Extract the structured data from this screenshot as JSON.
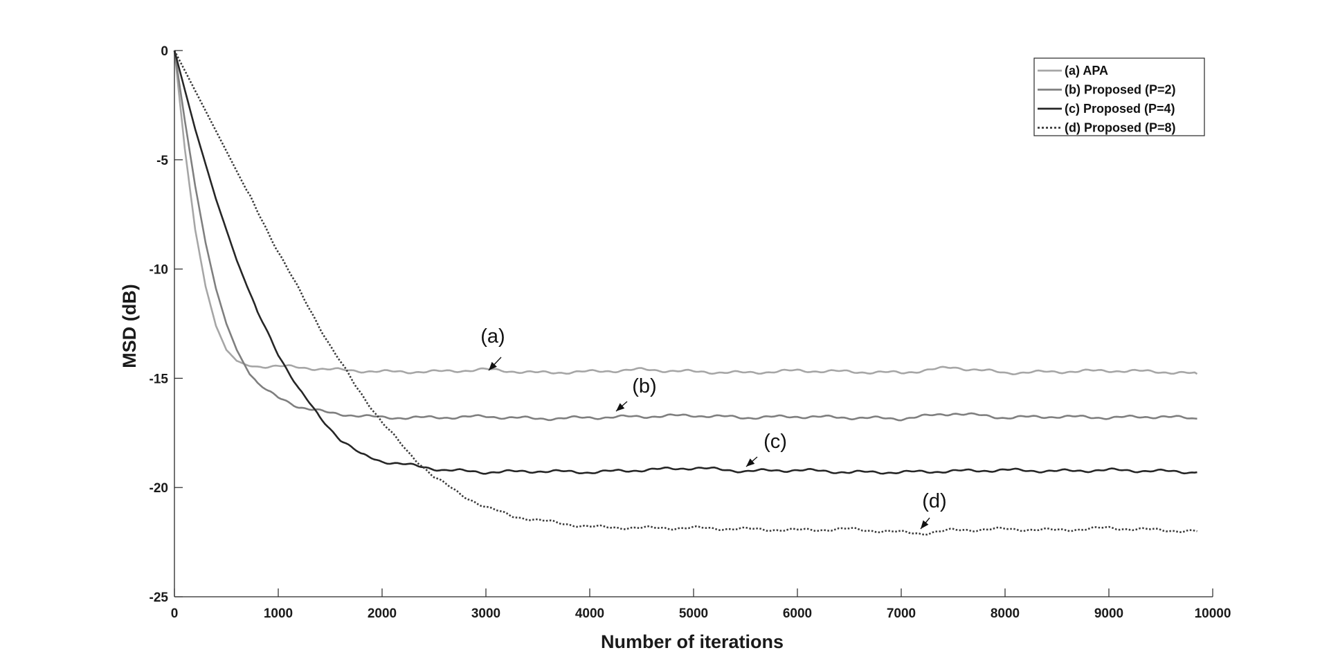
{
  "chart_data": {
    "type": "line",
    "title": "",
    "xlabel": "Number of iterations",
    "ylabel": "MSD (dB)",
    "xlim": [
      0,
      10000
    ],
    "ylim": [
      -25,
      0
    ],
    "xticks": [
      0,
      1000,
      2000,
      3000,
      4000,
      5000,
      6000,
      7000,
      8000,
      9000,
      10000
    ],
    "yticks": [
      0,
      -5,
      -10,
      -15,
      -20,
      -25
    ],
    "xtick_labels": [
      "0",
      "1000",
      "2000",
      "3000",
      "4000",
      "5000",
      "6000",
      "7000",
      "8000",
      "9000",
      "10000"
    ],
    "ytick_labels": [
      "0",
      "-5",
      "-10",
      "-15",
      "-20",
      "-25"
    ],
    "grid": false,
    "legend_position": "top-right",
    "series": [
      {
        "name": "(a) APA",
        "color": "#a6a6a6",
        "style": "solid",
        "x": [
          0,
          100,
          200,
          300,
          400,
          500,
          600,
          700,
          800,
          1000,
          1200,
          1500,
          2000,
          2500,
          3000,
          3500,
          4000,
          4500,
          5000,
          5500,
          6000,
          6500,
          7000,
          7500,
          8000,
          8500,
          9000,
          9500,
          9850
        ],
        "y": [
          0,
          -4.5,
          -8.2,
          -10.8,
          -12.6,
          -13.7,
          -14.2,
          -14.4,
          -14.45,
          -14.45,
          -14.5,
          -14.6,
          -14.7,
          -14.7,
          -14.6,
          -14.75,
          -14.7,
          -14.6,
          -14.7,
          -14.75,
          -14.65,
          -14.7,
          -14.75,
          -14.5,
          -14.75,
          -14.7,
          -14.65,
          -14.7,
          -14.8
        ]
      },
      {
        "name": "(b) Proposed (P=2)",
        "color": "#7f7f7f",
        "style": "solid",
        "x": [
          0,
          100,
          200,
          300,
          400,
          500,
          600,
          700,
          800,
          900,
          1000,
          1200,
          1500,
          2000,
          2500,
          3000,
          3500,
          4000,
          4500,
          5000,
          5500,
          6000,
          6500,
          7000,
          7500,
          8000,
          8500,
          9000,
          9500,
          9850
        ],
        "y": [
          0,
          -3.2,
          -6.2,
          -8.8,
          -10.9,
          -12.5,
          -13.7,
          -14.6,
          -15.2,
          -15.6,
          -15.9,
          -16.3,
          -16.6,
          -16.8,
          -16.8,
          -16.75,
          -16.85,
          -16.8,
          -16.75,
          -16.7,
          -16.8,
          -16.75,
          -16.8,
          -16.85,
          -16.6,
          -16.8,
          -16.75,
          -16.8,
          -16.75,
          -16.85
        ]
      },
      {
        "name": "(c) Proposed (P=4)",
        "color": "#262626",
        "style": "solid",
        "x": [
          0,
          200,
          400,
          600,
          800,
          1000,
          1200,
          1400,
          1600,
          1800,
          2000,
          2300,
          2600,
          3000,
          3500,
          4000,
          4500,
          5000,
          5500,
          6000,
          6500,
          7000,
          7500,
          8000,
          8500,
          9000,
          9500,
          9850
        ],
        "y": [
          0,
          -3.6,
          -6.8,
          -9.6,
          -12.0,
          -13.9,
          -15.5,
          -16.8,
          -17.8,
          -18.5,
          -18.8,
          -19.0,
          -19.2,
          -19.3,
          -19.25,
          -19.3,
          -19.2,
          -19.1,
          -19.25,
          -19.2,
          -19.3,
          -19.3,
          -19.25,
          -19.2,
          -19.25,
          -19.2,
          -19.25,
          -19.3
        ]
      },
      {
        "name": "(d) Proposed (P=8)",
        "color": "#3a3a3a",
        "style": "dotted",
        "x": [
          0,
          250,
          500,
          750,
          1000,
          1250,
          1500,
          1750,
          2000,
          2250,
          2500,
          2750,
          3000,
          3250,
          3500,
          4000,
          4500,
          5000,
          5500,
          6000,
          6500,
          7000,
          7200,
          7500,
          8000,
          8500,
          9000,
          9500,
          9850
        ],
        "y": [
          0,
          -2.3,
          -4.6,
          -6.9,
          -9.2,
          -11.4,
          -13.5,
          -15.4,
          -17.0,
          -18.4,
          -19.5,
          -20.3,
          -20.9,
          -21.3,
          -21.5,
          -21.8,
          -21.85,
          -21.85,
          -21.9,
          -21.95,
          -21.9,
          -22.05,
          -22.1,
          -21.95,
          -21.9,
          -21.95,
          -21.85,
          -21.95,
          -22.0
        ]
      }
    ],
    "annotations": [
      {
        "text": "(a)",
        "x": 3000,
        "y": -14.8
      },
      {
        "text": "(b)",
        "x": 4300,
        "y": -16.8
      },
      {
        "text": "(c)",
        "x": 5500,
        "y": -19.3
      },
      {
        "text": "(d)",
        "x": 7200,
        "y": -22.1
      }
    ]
  }
}
